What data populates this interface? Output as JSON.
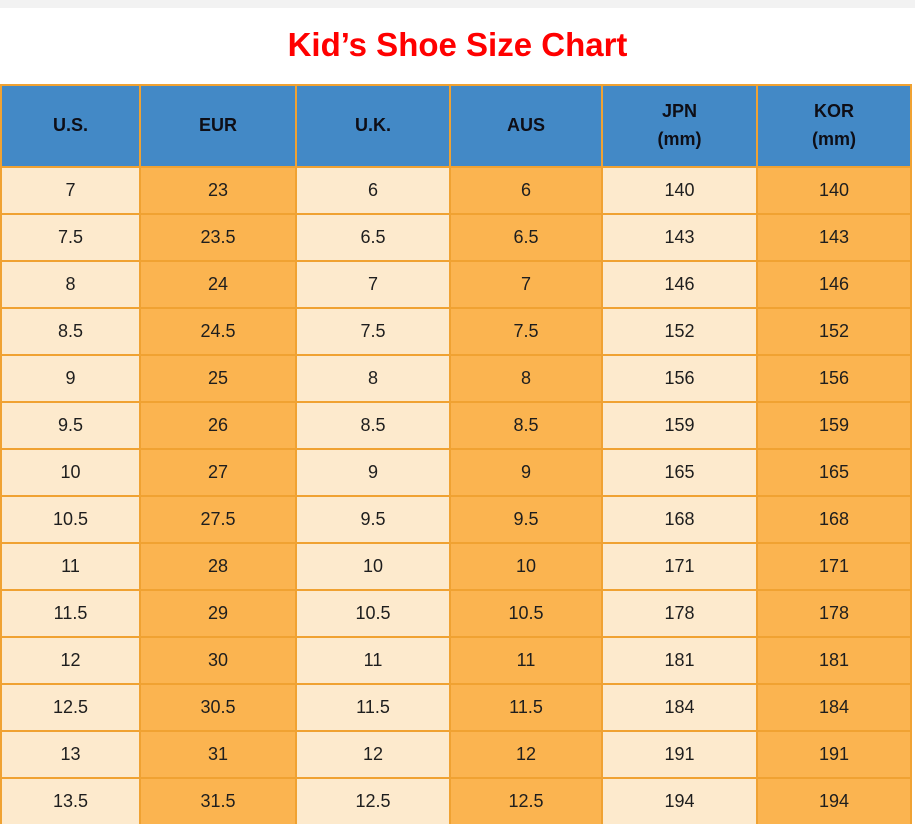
{
  "page": {
    "title": "Kid’s Shoe Size Chart",
    "colors": {
      "title_red": "#FF0000",
      "top_strip": "#F2F2F2",
      "background": "#FFFFFF"
    }
  },
  "table": {
    "colors": {
      "header_bg": "#4389C6",
      "header_text": "#0e0e16",
      "border": "#F0A232",
      "cream": "#FDEACD",
      "orange": "#FBB450",
      "cell_text": "#1e1e1e"
    },
    "col_colors": [
      "#FDEACD",
      "#FBB450",
      "#FDEACD",
      "#FBB450",
      "#FDEACD",
      "#FBB450"
    ],
    "columns": [
      {
        "key": "us",
        "label": "U.S.",
        "sub": ""
      },
      {
        "key": "eur",
        "label": "EUR",
        "sub": ""
      },
      {
        "key": "uk",
        "label": "U.K.",
        "sub": ""
      },
      {
        "key": "aus",
        "label": "AUS",
        "sub": ""
      },
      {
        "key": "jpn",
        "label": "JPN",
        "sub": "(mm)"
      },
      {
        "key": "kor",
        "label": "KOR",
        "sub": "(mm)"
      }
    ],
    "rows": [
      [
        "7",
        "23",
        "6",
        "6",
        "140",
        "140"
      ],
      [
        "7.5",
        "23.5",
        "6.5",
        "6.5",
        "143",
        "143"
      ],
      [
        "8",
        "24",
        "7",
        "7",
        "146",
        "146"
      ],
      [
        "8.5",
        "24.5",
        "7.5",
        "7.5",
        "152",
        "152"
      ],
      [
        "9",
        "25",
        "8",
        "8",
        "156",
        "156"
      ],
      [
        "9.5",
        "26",
        "8.5",
        "8.5",
        "159",
        "159"
      ],
      [
        "10",
        "27",
        "9",
        "9",
        "165",
        "165"
      ],
      [
        "10.5",
        "27.5",
        "9.5",
        "9.5",
        "168",
        "168"
      ],
      [
        "11",
        "28",
        "10",
        "10",
        "171",
        "171"
      ],
      [
        "11.5",
        "29",
        "10.5",
        "10.5",
        "178",
        "178"
      ],
      [
        "12",
        "30",
        "11",
        "11",
        "181",
        "181"
      ],
      [
        "12.5",
        "30.5",
        "11.5",
        "11.5",
        "184",
        "184"
      ],
      [
        "13",
        "31",
        "12",
        "12",
        "191",
        "191"
      ],
      [
        "13.5",
        "31.5",
        "12.5",
        "12.5",
        "194",
        "194"
      ]
    ]
  },
  "chart_data": {
    "type": "table",
    "title": "Kid’s Shoe Size Chart",
    "columns": [
      "U.S.",
      "EUR",
      "U.K.",
      "AUS",
      "JPN (mm)",
      "KOR (mm)"
    ],
    "rows": [
      [
        7,
        23,
        6,
        6,
        140,
        140
      ],
      [
        7.5,
        23.5,
        6.5,
        6.5,
        143,
        143
      ],
      [
        8,
        24,
        7,
        7,
        146,
        146
      ],
      [
        8.5,
        24.5,
        7.5,
        7.5,
        152,
        152
      ],
      [
        9,
        25,
        8,
        8,
        156,
        156
      ],
      [
        9.5,
        26,
        8.5,
        8.5,
        159,
        159
      ],
      [
        10,
        27,
        9,
        9,
        165,
        165
      ],
      [
        10.5,
        27.5,
        9.5,
        9.5,
        168,
        168
      ],
      [
        11,
        28,
        10,
        10,
        171,
        171
      ],
      [
        11.5,
        29,
        10.5,
        10.5,
        178,
        178
      ],
      [
        12,
        30,
        11,
        11,
        181,
        181
      ],
      [
        12.5,
        30.5,
        11.5,
        11.5,
        184,
        184
      ],
      [
        13,
        31,
        12,
        12,
        191,
        191
      ],
      [
        13.5,
        31.5,
        12.5,
        12.5,
        194,
        194
      ]
    ]
  }
}
